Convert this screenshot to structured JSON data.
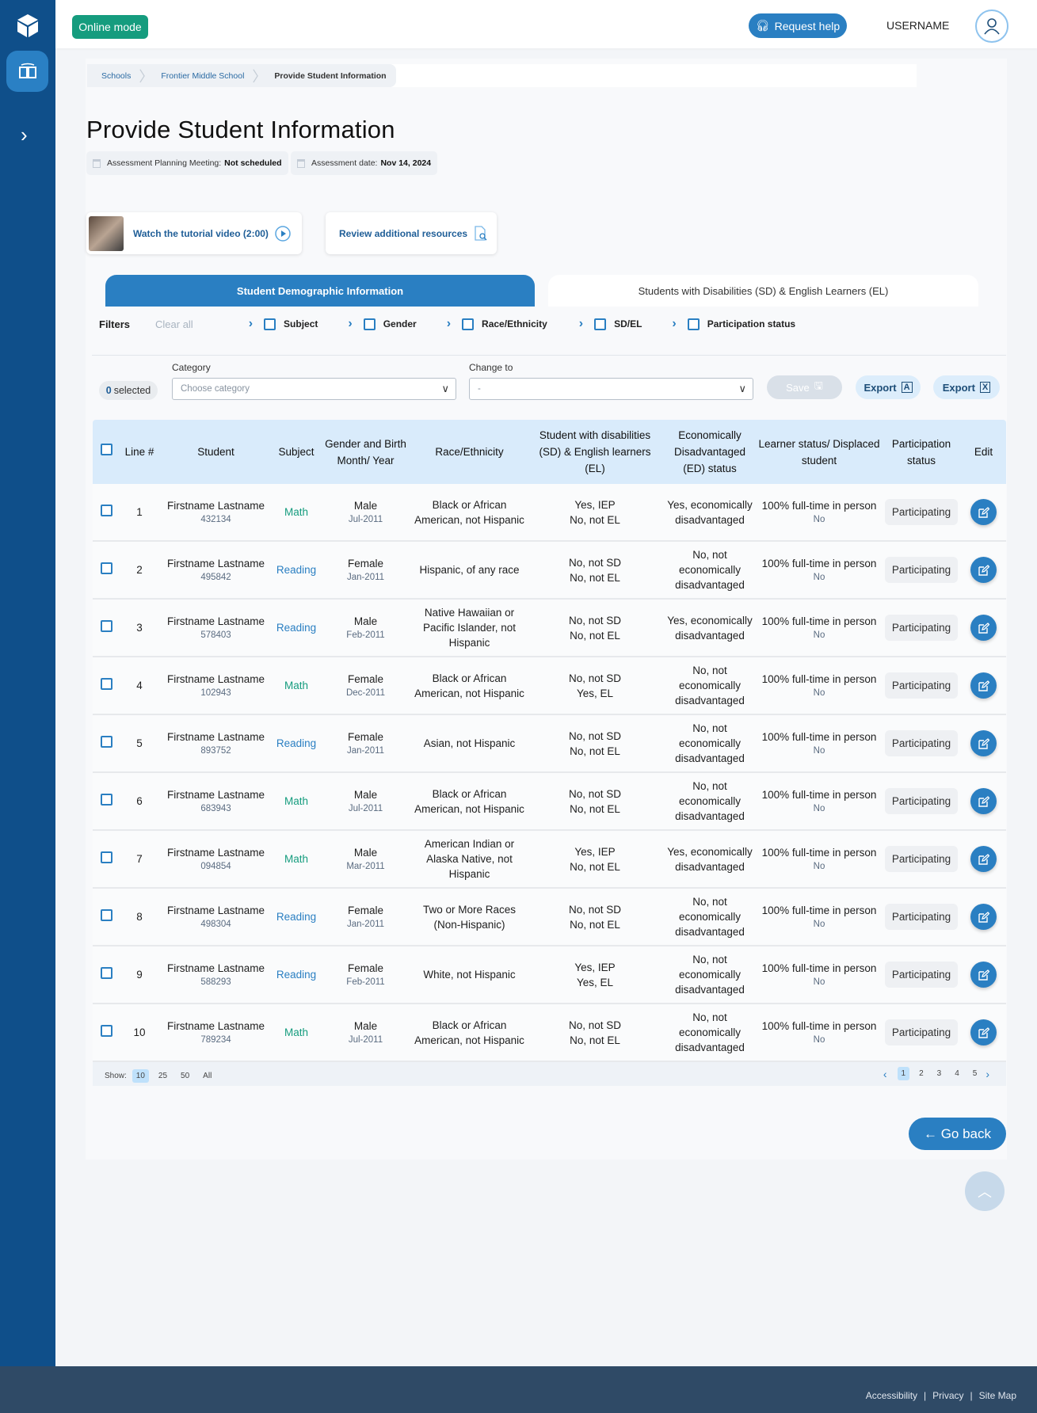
{
  "header": {
    "online_mode": "Online mode",
    "request_help": "Request help",
    "username": "USERNAME"
  },
  "breadcrumb": [
    "Schools",
    "Frontier Middle School",
    "Provide Student Information"
  ],
  "page_title": "Provide Student Information",
  "meta": {
    "meeting_label": "Assessment Planning Meeting:",
    "meeting_value": "Not scheduled",
    "date_label": "Assessment date:",
    "date_value": "Nov 14, 2024"
  },
  "cards": {
    "tutorial": "Watch the tutorial video (2:00)",
    "resources": "Review additional resources"
  },
  "tabs": [
    "Student Demographic Information",
    "Students with Disabilities (SD) & English Learners (EL)"
  ],
  "filters": {
    "label": "Filters",
    "clear_all": "Clear all",
    "items": [
      "Subject",
      "Gender",
      "Race/Ethnicity",
      "SD/EL",
      "Participation status"
    ]
  },
  "bulk": {
    "selected_count": "0",
    "selected_label": "selected",
    "category_label": "Category",
    "category_placeholder": "Choose category",
    "change_to_label": "Change to",
    "change_to_value": "-",
    "save": "Save",
    "export_pdf": "Export",
    "export_xls": "Export"
  },
  "table": {
    "columns": [
      "Line #",
      "Student",
      "Subject",
      "Gender and Birth Month/ Year",
      "Race/Ethnicity",
      "Student with disabilities (SD) & English learners (EL)",
      "Economically Disadvantaged (ED) status",
      "Learner status/ Displaced student",
      "Participation status",
      "Edit"
    ],
    "rows": [
      {
        "line": "1",
        "name": "Firstname Lastname",
        "id": "432134",
        "subject": "Math",
        "gender": "Male",
        "birth": "Jul-2011",
        "race": "Black or African American, not Hispanic",
        "sd": "Yes, IEP",
        "el": "No, not EL",
        "ed": "Yes, economically disadvantaged",
        "learner": "100% full-time in person",
        "displaced": "No",
        "participation": "Participating"
      },
      {
        "line": "2",
        "name": "Firstname Lastname",
        "id": "495842",
        "subject": "Reading",
        "gender": "Female",
        "birth": "Jan-2011",
        "race": "Hispanic, of any race",
        "sd": "No, not SD",
        "el": "No, not EL",
        "ed": "No, not economically disadvantaged",
        "learner": "100% full-time in person",
        "displaced": "No",
        "participation": "Participating"
      },
      {
        "line": "3",
        "name": "Firstname Lastname",
        "id": "578403",
        "subject": "Reading",
        "gender": "Male",
        "birth": "Feb-2011",
        "race": "Native Hawaiian or Pacific Islander, not Hispanic",
        "sd": "No, not SD",
        "el": "No, not EL",
        "ed": "Yes, economically disadvantaged",
        "learner": "100% full-time in person",
        "displaced": "No",
        "participation": "Participating"
      },
      {
        "line": "4",
        "name": "Firstname Lastname",
        "id": "102943",
        "subject": "Math",
        "gender": "Female",
        "birth": "Dec-2011",
        "race": "Black or African American, not Hispanic",
        "sd": "No, not SD",
        "el": "Yes, EL",
        "ed": "No, not economically disadvantaged",
        "learner": "100% full-time in person",
        "displaced": "No",
        "participation": "Participating"
      },
      {
        "line": "5",
        "name": "Firstname Lastname",
        "id": "893752",
        "subject": "Reading",
        "gender": "Female",
        "birth": "Jan-2011",
        "race": "Asian, not Hispanic",
        "sd": "No, not SD",
        "el": "No, not EL",
        "ed": "No, not economically disadvantaged",
        "learner": "100% full-time in person",
        "displaced": "No",
        "participation": "Participating"
      },
      {
        "line": "6",
        "name": "Firstname Lastname",
        "id": "683943",
        "subject": "Math",
        "gender": "Male",
        "birth": "Jul-2011",
        "race": "Black or African American, not Hispanic",
        "sd": "No, not SD",
        "el": "No, not EL",
        "ed": "No, not economically disadvantaged",
        "learner": "100% full-time in person",
        "displaced": "No",
        "participation": "Participating"
      },
      {
        "line": "7",
        "name": "Firstname Lastname",
        "id": "094854",
        "subject": "Math",
        "gender": "Male",
        "birth": "Mar-2011",
        "race": "American Indian or Alaska Native, not Hispanic",
        "sd": "Yes, IEP",
        "el": "No, not EL",
        "ed": "Yes, economically disadvantaged",
        "learner": "100% full-time in person",
        "displaced": "No",
        "participation": "Participating"
      },
      {
        "line": "8",
        "name": "Firstname Lastname",
        "id": "498304",
        "subject": "Reading",
        "gender": "Female",
        "birth": "Jan-2011",
        "race": "Two or More Races (Non-Hispanic)",
        "sd": "No, not SD",
        "el": "No, not EL",
        "ed": "No, not economically disadvantaged",
        "learner": "100% full-time in person",
        "displaced": "No",
        "participation": "Participating"
      },
      {
        "line": "9",
        "name": "Firstname Lastname",
        "id": "588293",
        "subject": "Reading",
        "gender": "Female",
        "birth": "Feb-2011",
        "race": "White, not Hispanic",
        "sd": "Yes, IEP",
        "el": "Yes, EL",
        "ed": "No, not economically disadvantaged",
        "learner": "100% full-time in person",
        "displaced": "No",
        "participation": "Participating"
      },
      {
        "line": "10",
        "name": "Firstname Lastname",
        "id": "789234",
        "subject": "Math",
        "gender": "Male",
        "birth": "Jul-2011",
        "race": "Black or African American, not Hispanic",
        "sd": "No, not SD",
        "el": "No, not EL",
        "ed": "No, not economically disadvantaged",
        "learner": "100% full-time in person",
        "displaced": "No",
        "participation": "Participating"
      }
    ]
  },
  "pagination": {
    "show_label": "Show:",
    "sizes": [
      "10",
      "25",
      "50",
      "All"
    ],
    "active_size": "10",
    "pages": [
      "1",
      "2",
      "3",
      "4",
      "5"
    ],
    "active_page": "1"
  },
  "go_back": "← Go back",
  "footer": {
    "links": [
      "Accessibility",
      "Privacy",
      "Site Map"
    ]
  },
  "colors": {
    "sidebar": "#0f4f8a",
    "primary": "#2a7fc2",
    "online": "#159c7e",
    "footer": "#2f4a66"
  }
}
